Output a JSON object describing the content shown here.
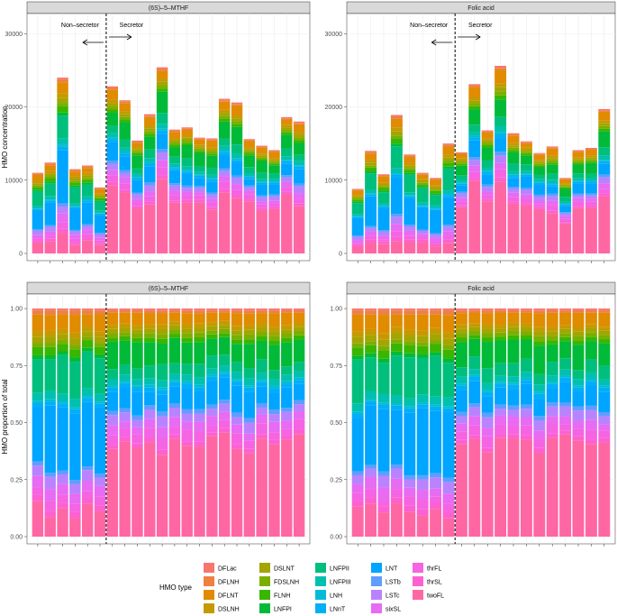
{
  "chart_data": {
    "type": "bar",
    "stacked": true,
    "ylabel_top": "HMO concentration",
    "ylabel_bottom": "HMO proportion of total",
    "legend_title": "HMO type",
    "legend_items": [
      "DFLac",
      "DFLNH",
      "DFLNT",
      "DSLNH",
      "DSLNT",
      "FDSLNH",
      "FLNH",
      "LNFPI",
      "LNFPII",
      "LNFPIII",
      "LNH",
      "LNnT",
      "LNT",
      "LSTb",
      "LSTc",
      "sixSL",
      "thrFL",
      "thrSL",
      "twoFL"
    ],
    "colors": {
      "DFLac": "#F8766D",
      "DFLNH": "#EE8042",
      "DFLNT": "#E08B00",
      "DSLNH": "#C49A00",
      "DSLNT": "#A3A500",
      "FDSLNH": "#7CAE00",
      "FLNH": "#39B600",
      "LNFPI": "#00BA38",
      "LNFPII": "#00BF7D",
      "LNFPIII": "#00C0AF",
      "LNH": "#00BCD8",
      "LNnT": "#00B0F6",
      "LNT": "#00A5FF",
      "LSTb": "#619CFF",
      "LSTc": "#B983FF",
      "sixSL": "#E76BF3",
      "thrFL": "#F564E3",
      "thrSL": "#FD61D1",
      "twoFL": "#FF67A4"
    },
    "panels": [
      {
        "id": "top-left",
        "strip": "(6S)–5–MTHF",
        "non_secretor_label": "Non–secretor",
        "secretor_label": "Secretor",
        "ylim": [
          0,
          32000
        ],
        "yticks": [
          0,
          10000,
          20000,
          30000
        ],
        "divider_after": 6,
        "totals": [
          11000,
          12400,
          24000,
          11500,
          12000,
          9000,
          22800,
          20900,
          15400,
          19000,
          25400,
          16900,
          17200,
          15800,
          15700,
          21100,
          20600,
          15600,
          14700,
          14100,
          18600,
          18000
        ]
      },
      {
        "id": "top-right",
        "strip": "Folic acid",
        "non_secretor_label": "Non–secretor",
        "secretor_label": "Secretor",
        "ylim": [
          0,
          32000
        ],
        "yticks": [
          0,
          10000,
          20000,
          30000
        ],
        "divider_after": 8,
        "totals": [
          8800,
          14000,
          10800,
          18900,
          13500,
          11000,
          10300,
          15000,
          13800,
          23100,
          16800,
          25600,
          16400,
          15300,
          13700,
          14600,
          10300,
          14100,
          14400,
          19700
        ]
      },
      {
        "id": "bottom-left",
        "strip": "(6S)–5–MTHF",
        "ylim": [
          0,
          1
        ],
        "yticks": [
          0,
          0.25,
          0.5,
          0.75,
          1.0
        ],
        "divider_after": 6,
        "ytick_labels": [
          "0.00",
          "0.25",
          "0.50",
          "0.75",
          "1.00"
        ],
        "bars": 22
      },
      {
        "id": "bottom-right",
        "strip": "Folic acid",
        "ylim": [
          0,
          1
        ],
        "yticks": [
          0,
          0.25,
          0.5,
          0.75,
          1.0
        ],
        "divider_after": 8,
        "ytick_labels": [
          "0.00",
          "0.25",
          "0.50",
          "0.75",
          "1.00"
        ],
        "bars": 20
      }
    ]
  }
}
